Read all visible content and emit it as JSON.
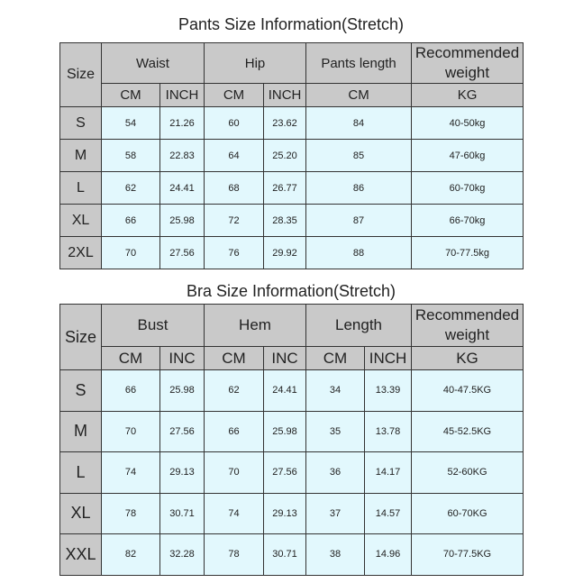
{
  "pants": {
    "title": "Pants  Size Information(Stretch)",
    "size_header": "Size",
    "groups": [
      "Waist",
      "Hip",
      "Pants length",
      "Recommended weight"
    ],
    "units": [
      "CM",
      "INCH",
      "CM",
      "INCH",
      "CM",
      "KG"
    ],
    "rows": [
      [
        "S",
        "54",
        "21.26",
        "60",
        "23.62",
        "84",
        "40-50kg"
      ],
      [
        "M",
        "58",
        "22.83",
        "64",
        "25.20",
        "85",
        "47-60kg"
      ],
      [
        "L",
        "62",
        "24.41",
        "68",
        "26.77",
        "86",
        "60-70kg"
      ],
      [
        "XL",
        "66",
        "25.98",
        "72",
        "28.35",
        "87",
        "66-70kg"
      ],
      [
        "2XL",
        "70",
        "27.56",
        "76",
        "29.92",
        "88",
        "70-77.5kg"
      ]
    ]
  },
  "bra": {
    "title": "Bra  Size Information(Stretch)",
    "size_header": "Size",
    "groups": [
      "Bust",
      "Hem",
      "Length",
      "Recommended weight"
    ],
    "units": [
      "CM",
      "INC",
      "CM",
      "INC",
      "CM",
      "INCH",
      "KG"
    ],
    "rows": [
      [
        "S",
        "66",
        "25.98",
        "62",
        "24.41",
        "34",
        "13.39",
        "40-47.5KG"
      ],
      [
        "M",
        "70",
        "27.56",
        "66",
        "25.98",
        "35",
        "13.78",
        "45-52.5KG"
      ],
      [
        "L",
        "74",
        "29.13",
        "70",
        "27.56",
        "36",
        "14.17",
        "52-60KG"
      ],
      [
        "XL",
        "78",
        "30.71",
        "74",
        "29.13",
        "37",
        "14.57",
        "60-70KG"
      ],
      [
        "XXL",
        "82",
        "32.28",
        "78",
        "30.71",
        "38",
        "14.96",
        "70-77.5KG"
      ]
    ]
  },
  "colors": {
    "header": "#c9c9c9",
    "cell": "#e2f8fd",
    "border": "#333333"
  }
}
